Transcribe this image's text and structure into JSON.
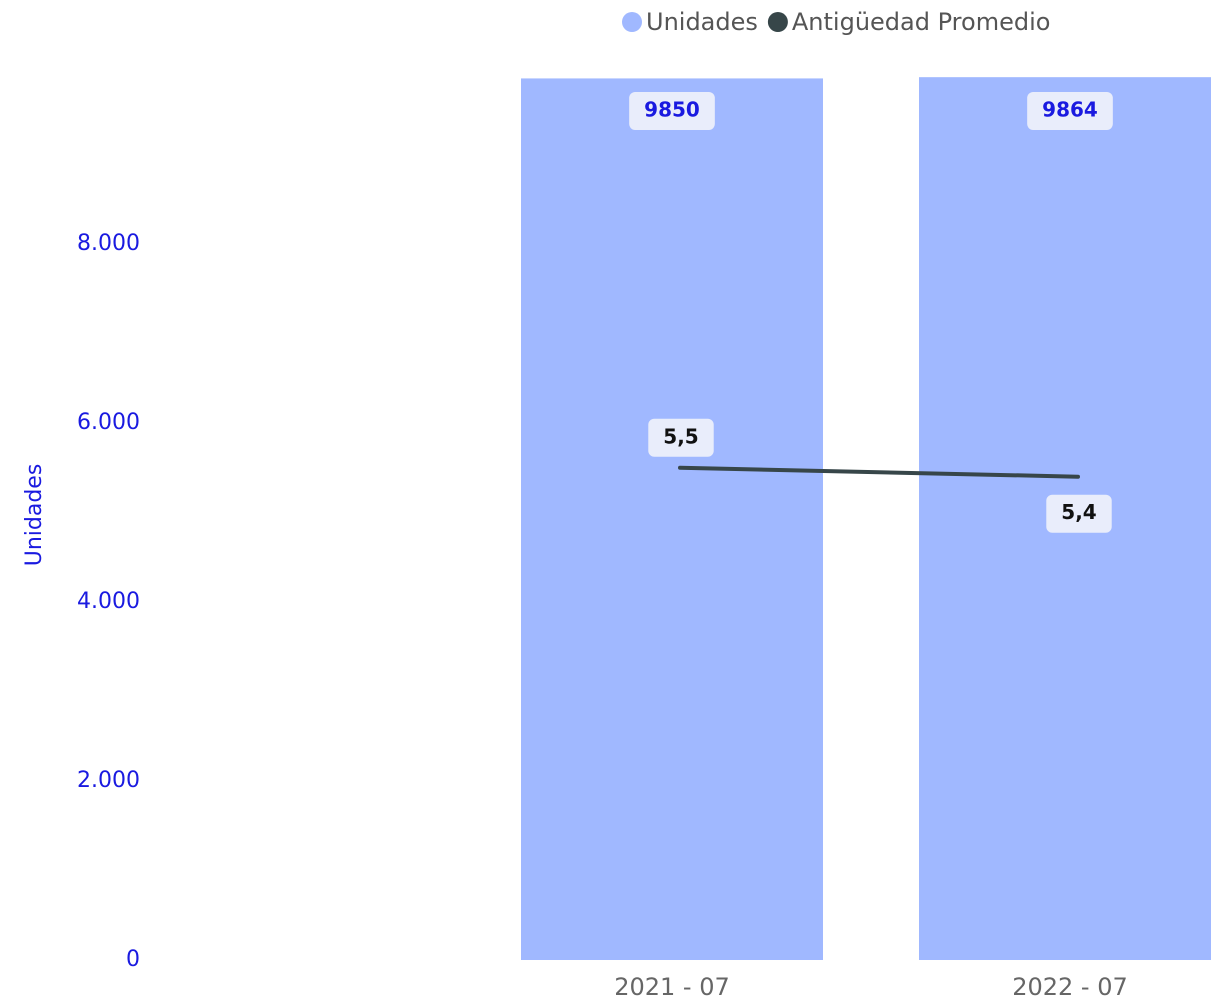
{
  "chart_data": {
    "type": "bar_line",
    "y_axis_label": "Unidades",
    "categories": [
      "2021 - 07",
      "2022 - 07"
    ],
    "series": [
      {
        "name": "Unidades",
        "color": "#a0b8ff",
        "type": "bar",
        "values": [
          9850,
          9864
        ]
      },
      {
        "name": "Antigüedad Promedio",
        "color": "#374649",
        "type": "line",
        "axis": "y2",
        "values": [
          5.5,
          5.4
        ],
        "value_labels": [
          "5,5",
          "5,4"
        ]
      }
    ],
    "ylim": [
      0,
      10000
    ],
    "yticks": [
      0,
      {
        "value": 2000,
        "label": "2.000"
      },
      {
        "value": 4000,
        "label": "4.000"
      },
      {
        "value": 6000,
        "label": "6.000"
      },
      {
        "value": 8000,
        "label": "8.000"
      }
    ],
    "y2lim": [
      0,
      10
    ],
    "legend": "top-right"
  }
}
